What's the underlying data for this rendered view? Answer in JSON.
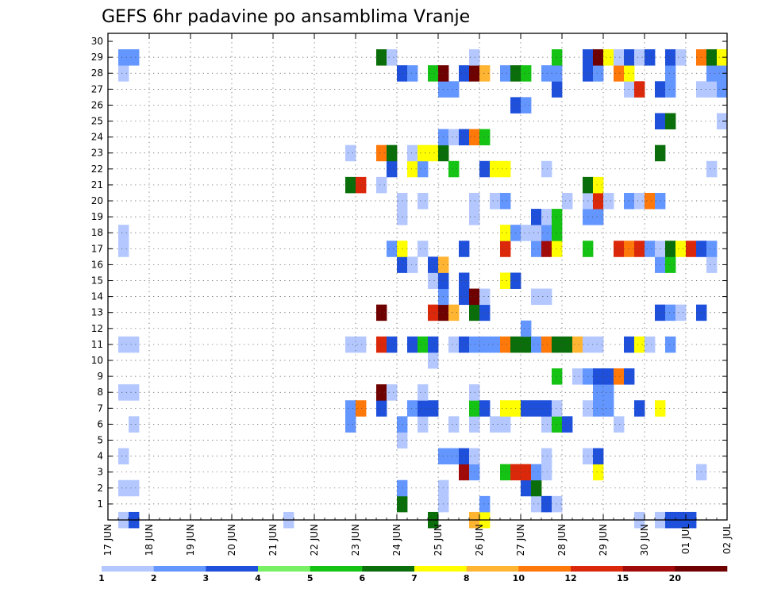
{
  "chart_data": {
    "type": "heatmap",
    "title": "GEFS 6hr padavine po ansamblima Vranje",
    "xlabel": "",
    "ylabel": "",
    "x_tick_labels": [
      "17 JUN",
      "18 JUN",
      "19 JUN",
      "20 JUN",
      "21 JUN",
      "22 JUN",
      "23 JUN",
      "24 JUN",
      "25 JUN",
      "26 JUN",
      "27 JUN",
      "28 JUN",
      "29 JUN",
      "30 JUN",
      "01 JUL",
      "02 JUL"
    ],
    "xlim_days": [
      0,
      15
    ],
    "y_ticks": [
      1,
      2,
      3,
      4,
      5,
      6,
      7,
      8,
      9,
      10,
      11,
      12,
      13,
      14,
      15,
      16,
      17,
      18,
      19,
      20,
      21,
      22,
      23,
      24,
      25,
      26,
      27,
      28,
      29,
      30
    ],
    "ylim": [
      0,
      30
    ],
    "time_step_hours": 6,
    "grid": true,
    "colorbar": {
      "labels": [
        "1",
        "2",
        "3",
        "4",
        "5",
        "6",
        "7",
        "8",
        "10",
        "12",
        "15",
        "20"
      ],
      "colors": [
        "#b4c8ff",
        "#6496ff",
        "#1e50dc",
        "#78f064",
        "#14c314",
        "#0a6e0a",
        "#ffff00",
        "#ffb432",
        "#ff780a",
        "#dc280a",
        "#a00a0a",
        "#6e0000"
      ]
    },
    "cells_format": "member: [[day_offset_from_17_JUN, color_index], ...]",
    "members": {
      "0": [
        [
          0.25,
          0
        ],
        [
          0.5,
          2
        ],
        [
          4.25,
          0
        ],
        [
          7.75,
          5
        ],
        [
          8.75,
          7
        ],
        [
          9.0,
          6
        ],
        [
          12.75,
          0
        ],
        [
          13.25,
          0
        ],
        [
          13.5,
          2
        ],
        [
          13.75,
          2
        ],
        [
          14.0,
          2
        ]
      ],
      "1": [
        [
          7.0,
          5
        ],
        [
          8.0,
          0
        ],
        [
          9.0,
          1
        ],
        [
          10.25,
          0
        ],
        [
          10.5,
          2
        ],
        [
          10.75,
          0
        ]
      ],
      "2": [
        [
          0.25,
          0
        ],
        [
          0.5,
          0
        ],
        [
          7.0,
          1
        ],
        [
          8.0,
          0
        ],
        [
          10.0,
          2
        ],
        [
          10.25,
          5
        ]
      ],
      "3": [
        [
          8.5,
          10
        ],
        [
          8.75,
          1
        ],
        [
          9.5,
          4
        ],
        [
          9.75,
          9
        ],
        [
          10.0,
          9
        ],
        [
          10.25,
          1
        ],
        [
          10.5,
          0
        ],
        [
          11.75,
          6
        ],
        [
          14.25,
          0
        ]
      ],
      "4": [
        [
          0.25,
          0
        ],
        [
          8.0,
          1
        ],
        [
          8.25,
          1
        ],
        [
          8.5,
          2
        ],
        [
          8.75,
          0
        ],
        [
          10.5,
          0
        ],
        [
          11.5,
          0
        ],
        [
          11.75,
          2
        ]
      ],
      "5": [
        [
          7.0,
          0
        ]
      ],
      "6": [
        [
          0.5,
          0
        ],
        [
          5.75,
          1
        ],
        [
          7.0,
          1
        ],
        [
          7.5,
          0
        ],
        [
          8.25,
          0
        ],
        [
          8.75,
          0
        ],
        [
          9.25,
          0
        ],
        [
          9.5,
          0
        ],
        [
          10.5,
          0
        ],
        [
          10.75,
          4
        ],
        [
          11.0,
          2
        ],
        [
          12.25,
          0
        ]
      ],
      "7": [
        [
          5.75,
          1
        ],
        [
          6.0,
          8
        ],
        [
          6.5,
          2
        ],
        [
          7.25,
          1
        ],
        [
          7.5,
          2
        ],
        [
          7.75,
          2
        ],
        [
          8.75,
          4
        ],
        [
          9.0,
          2
        ],
        [
          9.5,
          6
        ],
        [
          9.75,
          6
        ],
        [
          10.0,
          2
        ],
        [
          10.25,
          2
        ],
        [
          10.5,
          2
        ],
        [
          10.75,
          0
        ],
        [
          11.5,
          0
        ],
        [
          11.75,
          1
        ],
        [
          12.0,
          1
        ],
        [
          12.75,
          2
        ],
        [
          13.25,
          6
        ]
      ],
      "8": [
        [
          0.25,
          0
        ],
        [
          0.5,
          0
        ],
        [
          6.5,
          11
        ],
        [
          6.75,
          0
        ],
        [
          7.5,
          0
        ],
        [
          8.75,
          0
        ],
        [
          11.75,
          1
        ],
        [
          12.0,
          1
        ]
      ],
      "9": [
        [
          10.75,
          4
        ],
        [
          11.25,
          0
        ],
        [
          11.5,
          1
        ],
        [
          11.75,
          2
        ],
        [
          12.0,
          2
        ],
        [
          12.25,
          8
        ],
        [
          12.5,
          2
        ]
      ],
      "10": [
        [
          7.75,
          0
        ]
      ],
      "11": [
        [
          0.25,
          0
        ],
        [
          0.5,
          0
        ],
        [
          5.75,
          0
        ],
        [
          6.0,
          0
        ],
        [
          6.5,
          9
        ],
        [
          6.75,
          2
        ],
        [
          7.25,
          2
        ],
        [
          7.5,
          4
        ],
        [
          7.75,
          2
        ],
        [
          8.25,
          0
        ],
        [
          8.5,
          2
        ],
        [
          8.75,
          1
        ],
        [
          9.0,
          1
        ],
        [
          9.25,
          1
        ],
        [
          9.5,
          8
        ],
        [
          9.75,
          5
        ],
        [
          10.0,
          5
        ],
        [
          10.25,
          1
        ],
        [
          10.5,
          8
        ],
        [
          10.75,
          5
        ],
        [
          11.0,
          5
        ],
        [
          11.25,
          7
        ],
        [
          11.5,
          0
        ],
        [
          11.75,
          0
        ],
        [
          12.5,
          2
        ],
        [
          12.75,
          6
        ],
        [
          13.0,
          0
        ],
        [
          13.5,
          1
        ]
      ],
      "12": [
        [
          10.0,
          1
        ]
      ],
      "13": [
        [
          6.5,
          11
        ],
        [
          7.75,
          9
        ],
        [
          8.0,
          11
        ],
        [
          8.25,
          7
        ],
        [
          8.75,
          5
        ],
        [
          9.0,
          2
        ],
        [
          13.25,
          2
        ],
        [
          13.5,
          1
        ],
        [
          13.75,
          0
        ],
        [
          14.25,
          2
        ]
      ],
      "14": [
        [
          8.0,
          1
        ],
        [
          8.5,
          2
        ],
        [
          8.75,
          11
        ],
        [
          9.0,
          0
        ],
        [
          10.25,
          0
        ],
        [
          10.5,
          0
        ]
      ],
      "15": [
        [
          7.75,
          0
        ],
        [
          8.0,
          2
        ],
        [
          8.5,
          2
        ],
        [
          9.5,
          6
        ],
        [
          9.75,
          2
        ]
      ],
      "16": [
        [
          7.0,
          2
        ],
        [
          7.25,
          0
        ],
        [
          7.75,
          2
        ],
        [
          8.0,
          7
        ],
        [
          13.25,
          1
        ],
        [
          13.5,
          4
        ],
        [
          14.5,
          0
        ]
      ],
      "17": [
        [
          0.25,
          0
        ],
        [
          6.75,
          1
        ],
        [
          7.0,
          6
        ],
        [
          7.5,
          0
        ],
        [
          8.5,
          2
        ],
        [
          9.5,
          9
        ],
        [
          10.25,
          1
        ],
        [
          10.5,
          10
        ],
        [
          10.75,
          6
        ],
        [
          11.5,
          4
        ],
        [
          12.25,
          9
        ],
        [
          12.5,
          8
        ],
        [
          12.75,
          9
        ],
        [
          13.0,
          1
        ],
        [
          13.25,
          0
        ],
        [
          13.5,
          5
        ],
        [
          13.75,
          6
        ],
        [
          14.0,
          9
        ],
        [
          14.25,
          2
        ],
        [
          14.5,
          1
        ]
      ],
      "18": [
        [
          0.25,
          0
        ],
        [
          9.5,
          6
        ],
        [
          9.75,
          1
        ],
        [
          10.0,
          0
        ],
        [
          10.25,
          0
        ],
        [
          10.5,
          1
        ],
        [
          10.75,
          4
        ]
      ],
      "19": [
        [
          7.0,
          0
        ],
        [
          8.75,
          0
        ],
        [
          10.25,
          2
        ],
        [
          10.5,
          0
        ],
        [
          10.75,
          4
        ],
        [
          11.5,
          1
        ],
        [
          11.75,
          1
        ]
      ],
      "20": [
        [
          7.0,
          0
        ],
        [
          7.5,
          0
        ],
        [
          8.75,
          0
        ],
        [
          9.25,
          0
        ],
        [
          9.5,
          1
        ],
        [
          11.0,
          0
        ],
        [
          11.5,
          0
        ],
        [
          11.75,
          9
        ],
        [
          12.0,
          0
        ],
        [
          12.5,
          1
        ],
        [
          12.75,
          0
        ],
        [
          13.0,
          8
        ],
        [
          13.25,
          1
        ]
      ],
      "21": [
        [
          5.75,
          5
        ],
        [
          6.0,
          9
        ],
        [
          6.5,
          0
        ],
        [
          11.5,
          5
        ],
        [
          11.75,
          6
        ]
      ],
      "22": [
        [
          6.75,
          2
        ],
        [
          7.25,
          6
        ],
        [
          7.5,
          1
        ],
        [
          8.25,
          4
        ],
        [
          9.0,
          2
        ],
        [
          9.25,
          6
        ],
        [
          9.5,
          6
        ],
        [
          10.5,
          0
        ],
        [
          14.5,
          0
        ]
      ],
      "23": [
        [
          5.75,
          0
        ],
        [
          6.5,
          8
        ],
        [
          6.75,
          5
        ],
        [
          7.25,
          0
        ],
        [
          7.5,
          6
        ],
        [
          7.75,
          6
        ],
        [
          8.0,
          5
        ],
        [
          13.25,
          5
        ]
      ],
      "24": [
        [
          8.0,
          1
        ],
        [
          8.25,
          0
        ],
        [
          8.5,
          2
        ],
        [
          8.75,
          8
        ],
        [
          9.0,
          4
        ]
      ],
      "25": [
        [
          13.25,
          2
        ],
        [
          13.5,
          5
        ],
        [
          14.75,
          0
        ]
      ],
      "26": [
        [
          9.75,
          2
        ],
        [
          10.0,
          1
        ]
      ],
      "27": [
        [
          8.0,
          1
        ],
        [
          8.25,
          1
        ],
        [
          10.75,
          2
        ],
        [
          12.5,
          0
        ],
        [
          12.75,
          9
        ],
        [
          13.25,
          2
        ],
        [
          13.5,
          1
        ],
        [
          14.25,
          0
        ],
        [
          14.5,
          0
        ],
        [
          14.75,
          1
        ]
      ],
      "28": [
        [
          0.25,
          0
        ],
        [
          7.0,
          2
        ],
        [
          7.25,
          1
        ],
        [
          7.75,
          4
        ],
        [
          8.0,
          11
        ],
        [
          8.5,
          2
        ],
        [
          8.75,
          11
        ],
        [
          9.0,
          7
        ],
        [
          9.5,
          1
        ],
        [
          9.75,
          5
        ],
        [
          10.0,
          4
        ],
        [
          10.5,
          1
        ],
        [
          10.75,
          1
        ],
        [
          11.5,
          2
        ],
        [
          11.75,
          1
        ],
        [
          12.25,
          8
        ],
        [
          12.5,
          6
        ],
        [
          13.5,
          1
        ],
        [
          14.5,
          1
        ],
        [
          14.75,
          1
        ]
      ],
      "29": [
        [
          0.25,
          1
        ],
        [
          0.5,
          1
        ],
        [
          6.5,
          5
        ],
        [
          6.75,
          0
        ],
        [
          8.75,
          0
        ],
        [
          10.75,
          4
        ],
        [
          11.5,
          2
        ],
        [
          11.75,
          11
        ],
        [
          12.0,
          6
        ],
        [
          12.25,
          0
        ],
        [
          12.5,
          2
        ],
        [
          12.75,
          0
        ],
        [
          13.0,
          2
        ],
        [
          13.5,
          2
        ],
        [
          13.75,
          0
        ],
        [
          14.25,
          8
        ],
        [
          14.5,
          5
        ],
        [
          14.75,
          6
        ]
      ]
    }
  }
}
